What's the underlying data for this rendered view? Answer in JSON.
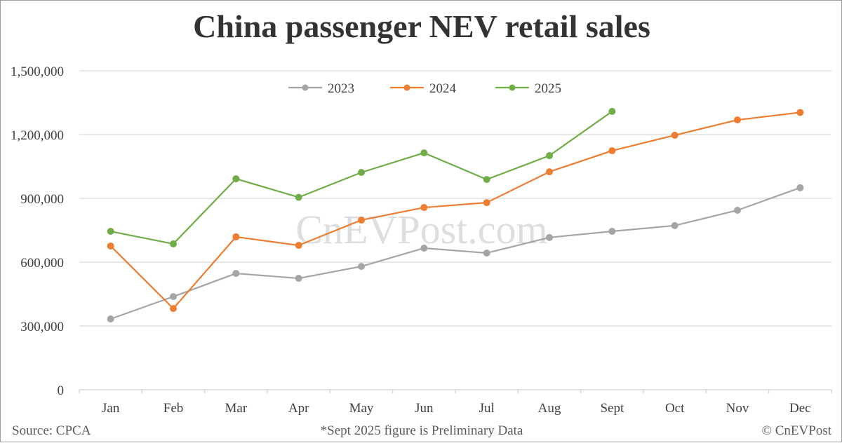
{
  "title": "China passenger NEV retail sales",
  "footer": {
    "source": "Source: CPCA",
    "note": "*Sept 2025 figure is Preliminary Data",
    "copyright": "© CnEVPost"
  },
  "watermark": "CnEVPost.com",
  "colors": {
    "2023": "#a5a5a5",
    "2024": "#ed7d31",
    "2025": "#70ad47",
    "grid": "#d9d9d9",
    "axis_text": "#404040"
  },
  "chart_data": {
    "type": "line",
    "title": "China passenger NEV retail sales",
    "xlabel": "",
    "ylabel": "",
    "categories": [
      "Jan",
      "Feb",
      "Mar",
      "Apr",
      "May",
      "Jun",
      "Jul",
      "Aug",
      "Sept",
      "Oct",
      "Nov",
      "Dec"
    ],
    "yticks": [
      0,
      300000,
      600000,
      900000,
      1200000,
      1500000
    ],
    "ytick_labels": [
      "0",
      "300,000",
      "600,000",
      "900,000",
      "1,200,000",
      "1,500,000"
    ],
    "ylim": [
      0,
      1500000
    ],
    "grid": true,
    "legend_position": "top",
    "series": [
      {
        "name": "2023",
        "color": "#a5a5a5",
        "values": [
          333000,
          438000,
          547000,
          524000,
          580000,
          666000,
          643000,
          716000,
          745000,
          772000,
          844000,
          950000
        ]
      },
      {
        "name": "2024",
        "color": "#ed7d31",
        "values": [
          676000,
          382000,
          719000,
          679000,
          798000,
          857000,
          880000,
          1025000,
          1124000,
          1197000,
          1269000,
          1304000
        ]
      },
      {
        "name": "2025",
        "color": "#70ad47",
        "values": [
          745000,
          686000,
          992000,
          905000,
          1022000,
          1114000,
          989000,
          1101000,
          1309000,
          null,
          null,
          null
        ]
      }
    ],
    "annotations": [
      "*Sept 2025 figure is Preliminary Data"
    ]
  }
}
